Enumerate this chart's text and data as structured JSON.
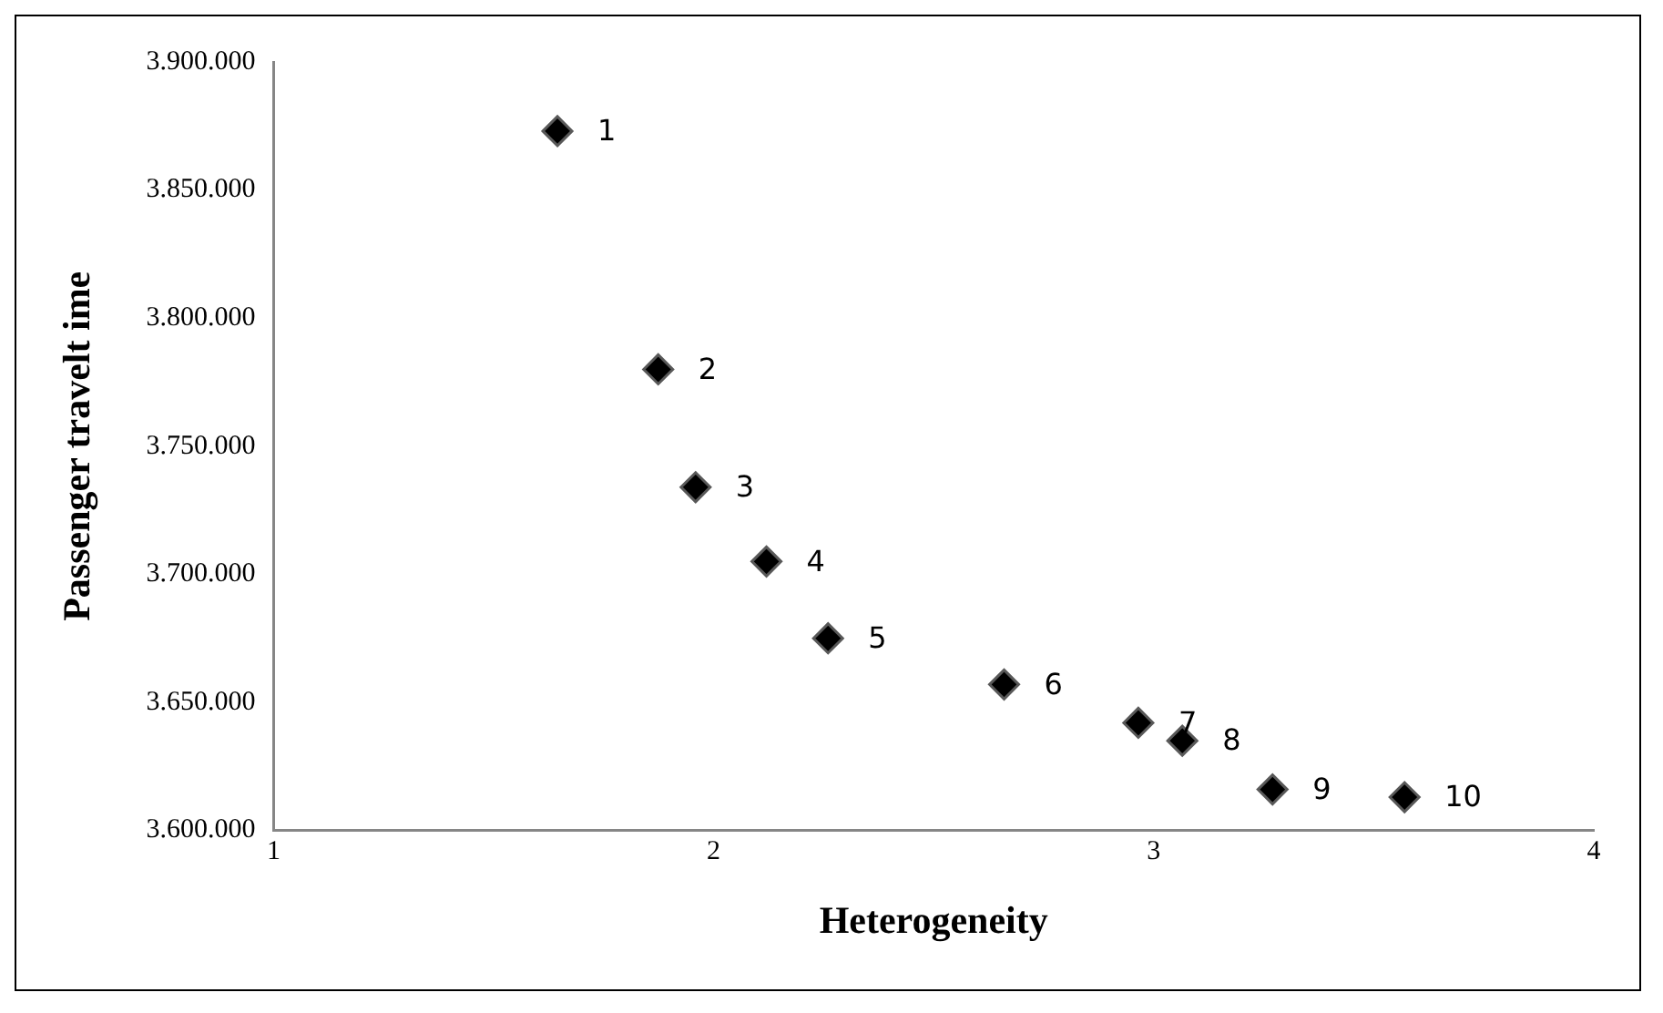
{
  "chart_data": {
    "type": "scatter",
    "xlabel": "Heterogeneity",
    "ylabel": "Passenger travelt ime",
    "x": [
      1.645,
      1.874,
      1.959,
      2.12,
      2.26,
      2.66,
      2.965,
      3.065,
      3.27,
      3.57
    ],
    "series": [
      {
        "color": "#000000",
        "values": [
          3873000,
          3780000,
          3734000,
          3705000,
          3675000,
          3657000,
          3642000,
          3635000,
          3616000,
          3613000
        ]
      }
    ],
    "xlim": [
      1,
      4
    ],
    "xticks": [
      1,
      2,
      3,
      4
    ],
    "ylim": [
      3600000,
      3900000
    ],
    "yticks": [
      {
        "value": 3600000,
        "label": "3.600.000"
      },
      {
        "value": 3650000,
        "label": "3.650.000"
      },
      {
        "value": 3700000,
        "label": "3.700.000"
      },
      {
        "value": 3750000,
        "label": "3.750.000"
      },
      {
        "value": 3800000,
        "label": "3.800.000"
      },
      {
        "value": 3850000,
        "label": "3.850.000"
      },
      {
        "value": 3900000,
        "label": "3.900.000"
      }
    ],
    "marker": "diamond",
    "grid": false,
    "legend": false,
    "annotations": [
      {
        "text": "1",
        "x": 1.645,
        "y": 3873000
      },
      {
        "text": "2",
        "x": 1.874,
        "y": 3780000
      },
      {
        "text": "3",
        "x": 1.959,
        "y": 3734000
      },
      {
        "text": "4",
        "x": 2.12,
        "y": 3705000
      },
      {
        "text": "5",
        "x": 2.26,
        "y": 3675000
      },
      {
        "text": "6",
        "x": 2.66,
        "y": 3657000
      },
      {
        "text": "7",
        "x": 2.965,
        "y": 3642000
      },
      {
        "text": "8",
        "x": 3.065,
        "y": 3635000
      },
      {
        "text": "9",
        "x": 3.27,
        "y": 3616000
      },
      {
        "text": "10",
        "x": 3.57,
        "y": 3613000
      }
    ]
  }
}
